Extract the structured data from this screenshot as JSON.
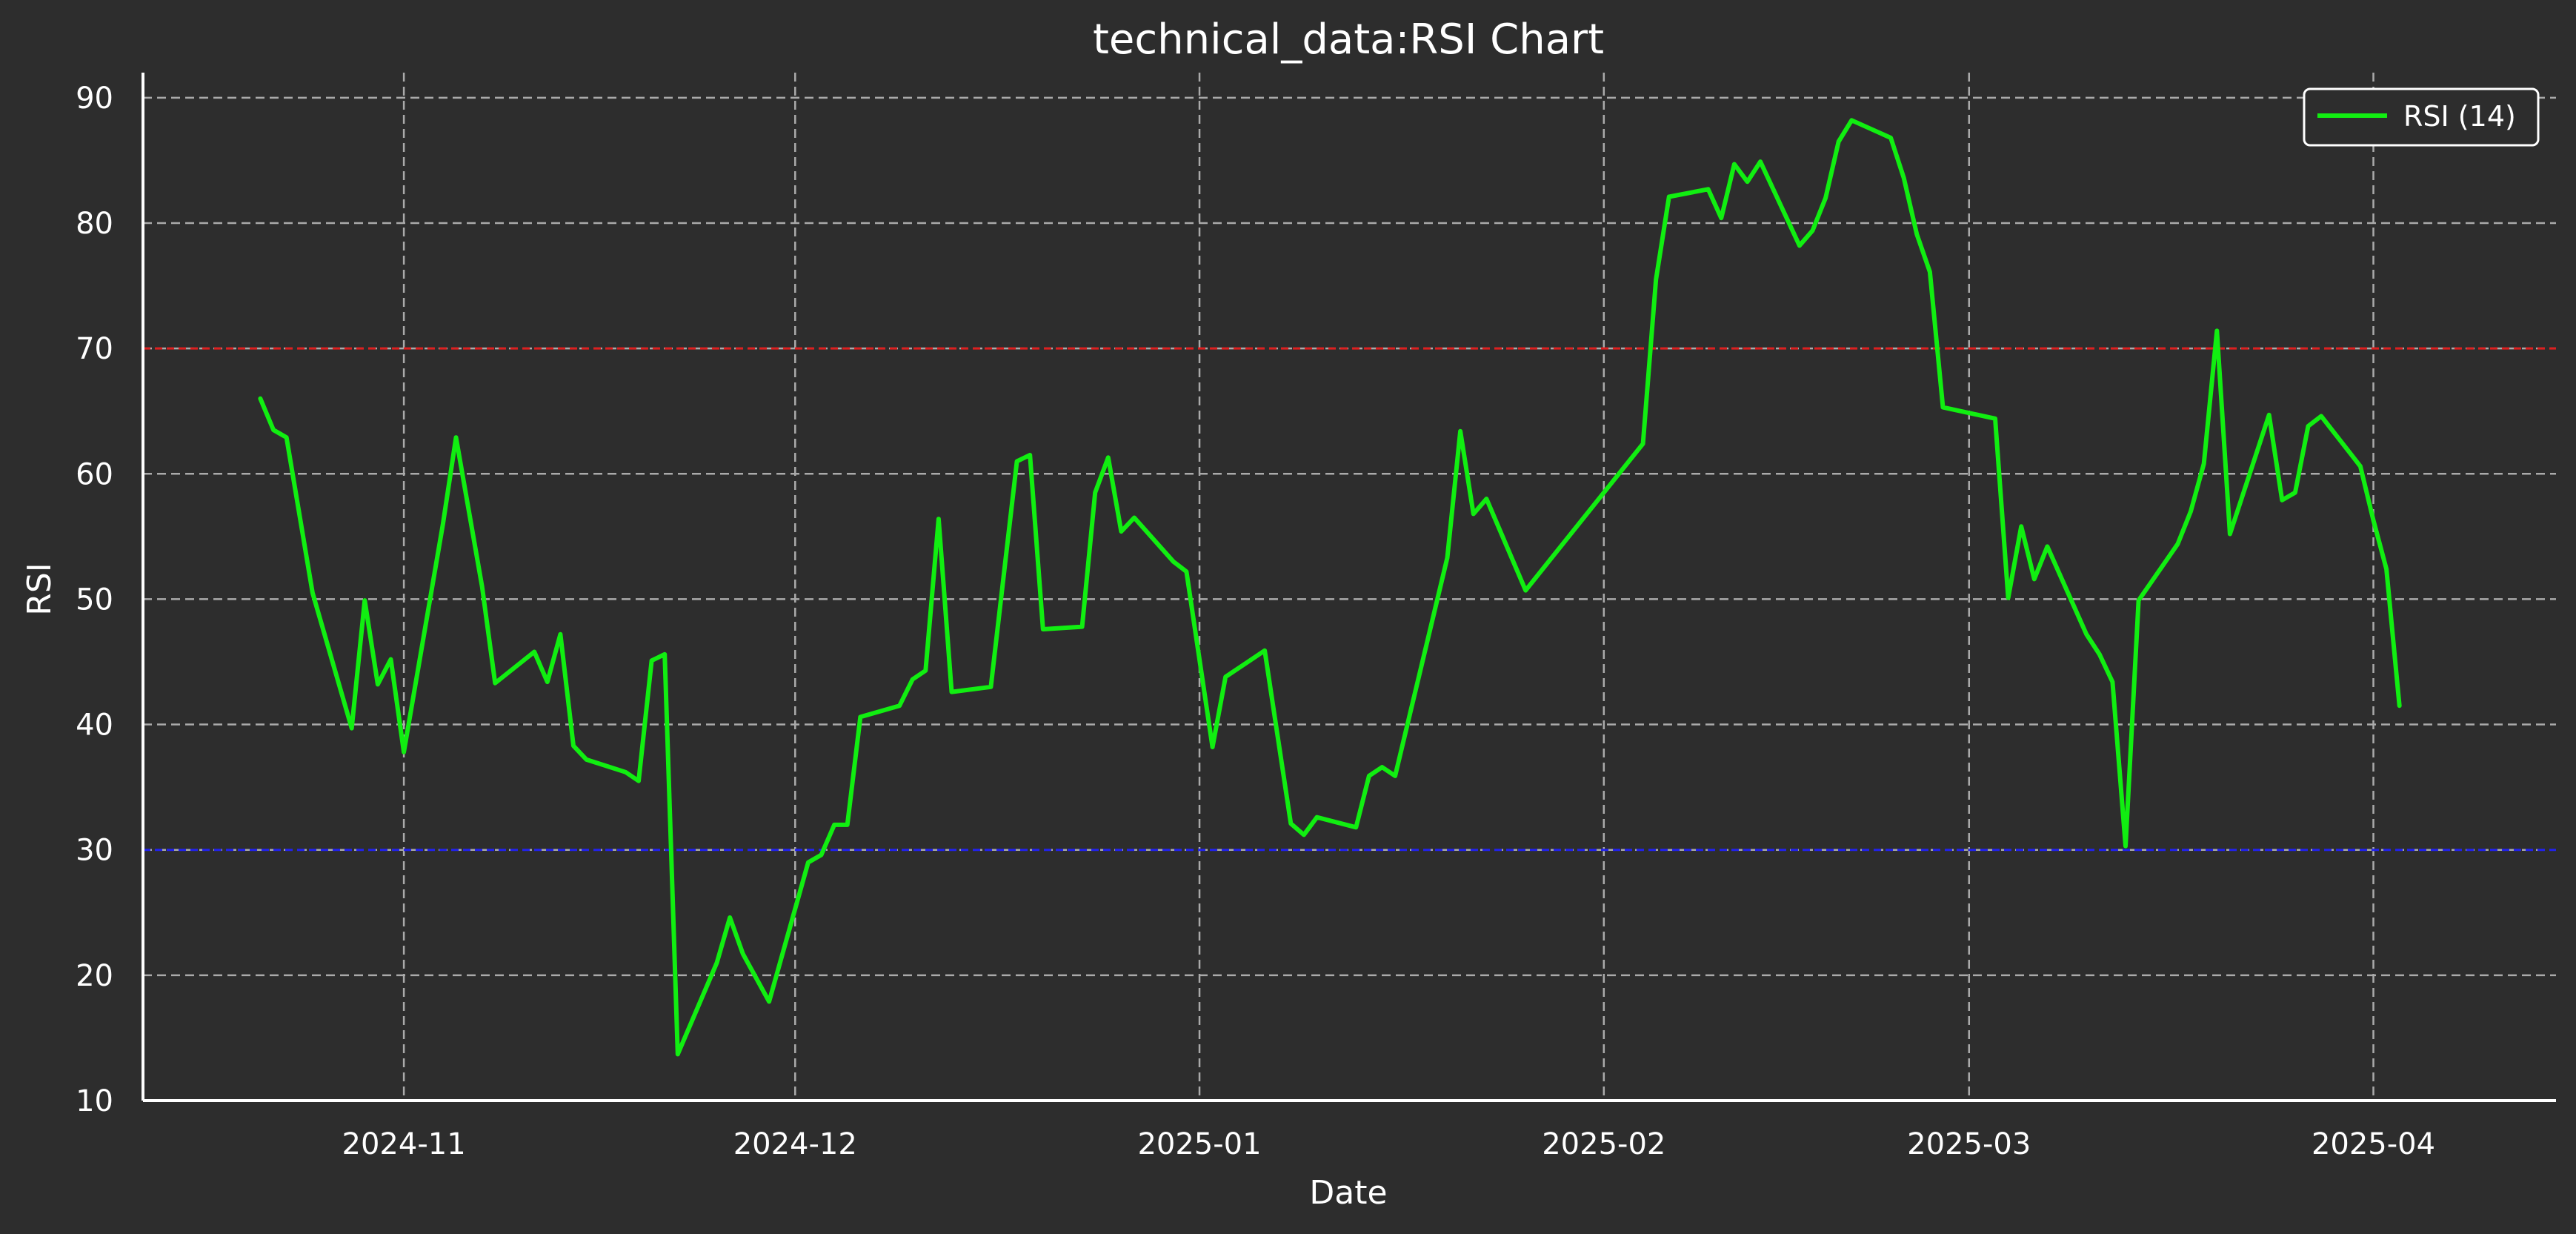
{
  "chart_data": {
    "type": "line",
    "title": "technical_data:RSI Chart",
    "xlabel": "Date",
    "ylabel": "RSI",
    "xlim": [
      "2024-10-12",
      "2025-04-15"
    ],
    "ylim": [
      10,
      92
    ],
    "grid": true,
    "legend_position": "top-right",
    "x_ticks": [
      "2024-11-01",
      "2024-12-01",
      "2025-01-01",
      "2025-02-01",
      "2025-03-01",
      "2025-04-01"
    ],
    "x_tick_labels": [
      "2024-11",
      "2024-12",
      "2025-01",
      "2025-02",
      "2025-03",
      "2025-04"
    ],
    "y_ticks": [
      10,
      20,
      30,
      40,
      50,
      60,
      70,
      80,
      90
    ],
    "reference_lines": [
      {
        "value": 70,
        "color": "#dd1f1f"
      },
      {
        "value": 30,
        "color": "#2222ee"
      }
    ],
    "series": [
      {
        "name": "RSI (14)",
        "color": "#11ee11",
        "points": [
          [
            "2024-10-21",
            66.0
          ],
          [
            "2024-10-22",
            63.5
          ],
          [
            "2024-10-23",
            62.9
          ],
          [
            "2024-10-25",
            50.5
          ],
          [
            "2024-10-28",
            39.7
          ],
          [
            "2024-10-29",
            49.9
          ],
          [
            "2024-10-30",
            43.2
          ],
          [
            "2024-10-31",
            45.2
          ],
          [
            "2024-11-01",
            37.8
          ],
          [
            "2024-11-04",
            56.0
          ],
          [
            "2024-11-05",
            62.9
          ],
          [
            "2024-11-07",
            51.0
          ],
          [
            "2024-11-08",
            43.3
          ],
          [
            "2024-11-11",
            45.8
          ],
          [
            "2024-11-12",
            43.4
          ],
          [
            "2024-11-13",
            47.2
          ],
          [
            "2024-11-14",
            38.3
          ],
          [
            "2024-11-15",
            37.2
          ],
          [
            "2024-11-18",
            36.2
          ],
          [
            "2024-11-19",
            35.5
          ],
          [
            "2024-11-20",
            45.1
          ],
          [
            "2024-11-21",
            45.6
          ],
          [
            "2024-11-22",
            13.7
          ],
          [
            "2024-11-25",
            21.0
          ],
          [
            "2024-11-26",
            24.6
          ],
          [
            "2024-11-27",
            21.7
          ],
          [
            "2024-11-29",
            17.9
          ],
          [
            "2024-12-02",
            29.0
          ],
          [
            "2024-12-03",
            29.6
          ],
          [
            "2024-12-04",
            32.0
          ],
          [
            "2024-12-05",
            32.0
          ],
          [
            "2024-12-06",
            40.6
          ],
          [
            "2024-12-09",
            41.5
          ],
          [
            "2024-12-10",
            43.6
          ],
          [
            "2024-12-11",
            44.3
          ],
          [
            "2024-12-12",
            56.4
          ],
          [
            "2024-12-13",
            42.6
          ],
          [
            "2024-12-16",
            43.0
          ],
          [
            "2024-12-18",
            61.0
          ],
          [
            "2024-12-19",
            61.5
          ],
          [
            "2024-12-20",
            47.6
          ],
          [
            "2024-12-23",
            47.8
          ],
          [
            "2024-12-24",
            58.5
          ],
          [
            "2024-12-25",
            61.3
          ],
          [
            "2024-12-26",
            55.4
          ],
          [
            "2024-12-27",
            56.5
          ],
          [
            "2024-12-30",
            53.0
          ],
          [
            "2024-12-31",
            52.2
          ],
          [
            "2025-01-02",
            38.2
          ],
          [
            "2025-01-03",
            43.8
          ],
          [
            "2025-01-06",
            45.9
          ],
          [
            "2025-01-08",
            32.1
          ],
          [
            "2025-01-09",
            31.2
          ],
          [
            "2025-01-10",
            32.6
          ],
          [
            "2025-01-13",
            31.8
          ],
          [
            "2025-01-14",
            35.9
          ],
          [
            "2025-01-15",
            36.6
          ],
          [
            "2025-01-16",
            35.9
          ],
          [
            "2025-01-20",
            53.3
          ],
          [
            "2025-01-21",
            63.4
          ],
          [
            "2025-01-22",
            56.8
          ],
          [
            "2025-01-23",
            58.0
          ],
          [
            "2025-01-26",
            50.7
          ],
          [
            "2025-02-04",
            62.4
          ],
          [
            "2025-02-05",
            75.5
          ],
          [
            "2025-02-06",
            82.1
          ],
          [
            "2025-02-09",
            82.7
          ],
          [
            "2025-02-10",
            80.4
          ],
          [
            "2025-02-11",
            84.7
          ],
          [
            "2025-02-12",
            83.3
          ],
          [
            "2025-02-13",
            84.9
          ],
          [
            "2025-02-16",
            78.2
          ],
          [
            "2025-02-17",
            79.4
          ],
          [
            "2025-02-18",
            82.0
          ],
          [
            "2025-02-19",
            86.5
          ],
          [
            "2025-02-20",
            88.2
          ],
          [
            "2025-02-23",
            86.8
          ],
          [
            "2025-02-24",
            83.6
          ],
          [
            "2025-02-25",
            79.1
          ],
          [
            "2025-02-26",
            76.1
          ],
          [
            "2025-02-27",
            65.3
          ],
          [
            "2025-03-03",
            64.4
          ],
          [
            "2025-03-04",
            50.1
          ],
          [
            "2025-03-05",
            55.8
          ],
          [
            "2025-03-06",
            51.6
          ],
          [
            "2025-03-07",
            54.2
          ],
          [
            "2025-03-10",
            47.2
          ],
          [
            "2025-03-11",
            45.6
          ],
          [
            "2025-03-12",
            43.4
          ],
          [
            "2025-03-13",
            30.3
          ],
          [
            "2025-03-14",
            49.9
          ],
          [
            "2025-03-17",
            54.4
          ],
          [
            "2025-03-18",
            57.0
          ],
          [
            "2025-03-19",
            60.8
          ],
          [
            "2025-03-20",
            71.4
          ],
          [
            "2025-03-21",
            55.2
          ],
          [
            "2025-03-24",
            64.7
          ],
          [
            "2025-03-25",
            57.9
          ],
          [
            "2025-03-26",
            58.5
          ],
          [
            "2025-03-27",
            63.8
          ],
          [
            "2025-03-28",
            64.6
          ],
          [
            "2025-03-31",
            60.6
          ],
          [
            "2025-04-01",
            56.3
          ],
          [
            "2025-04-02",
            52.4
          ],
          [
            "2025-04-03",
            41.5
          ]
        ]
      }
    ]
  }
}
